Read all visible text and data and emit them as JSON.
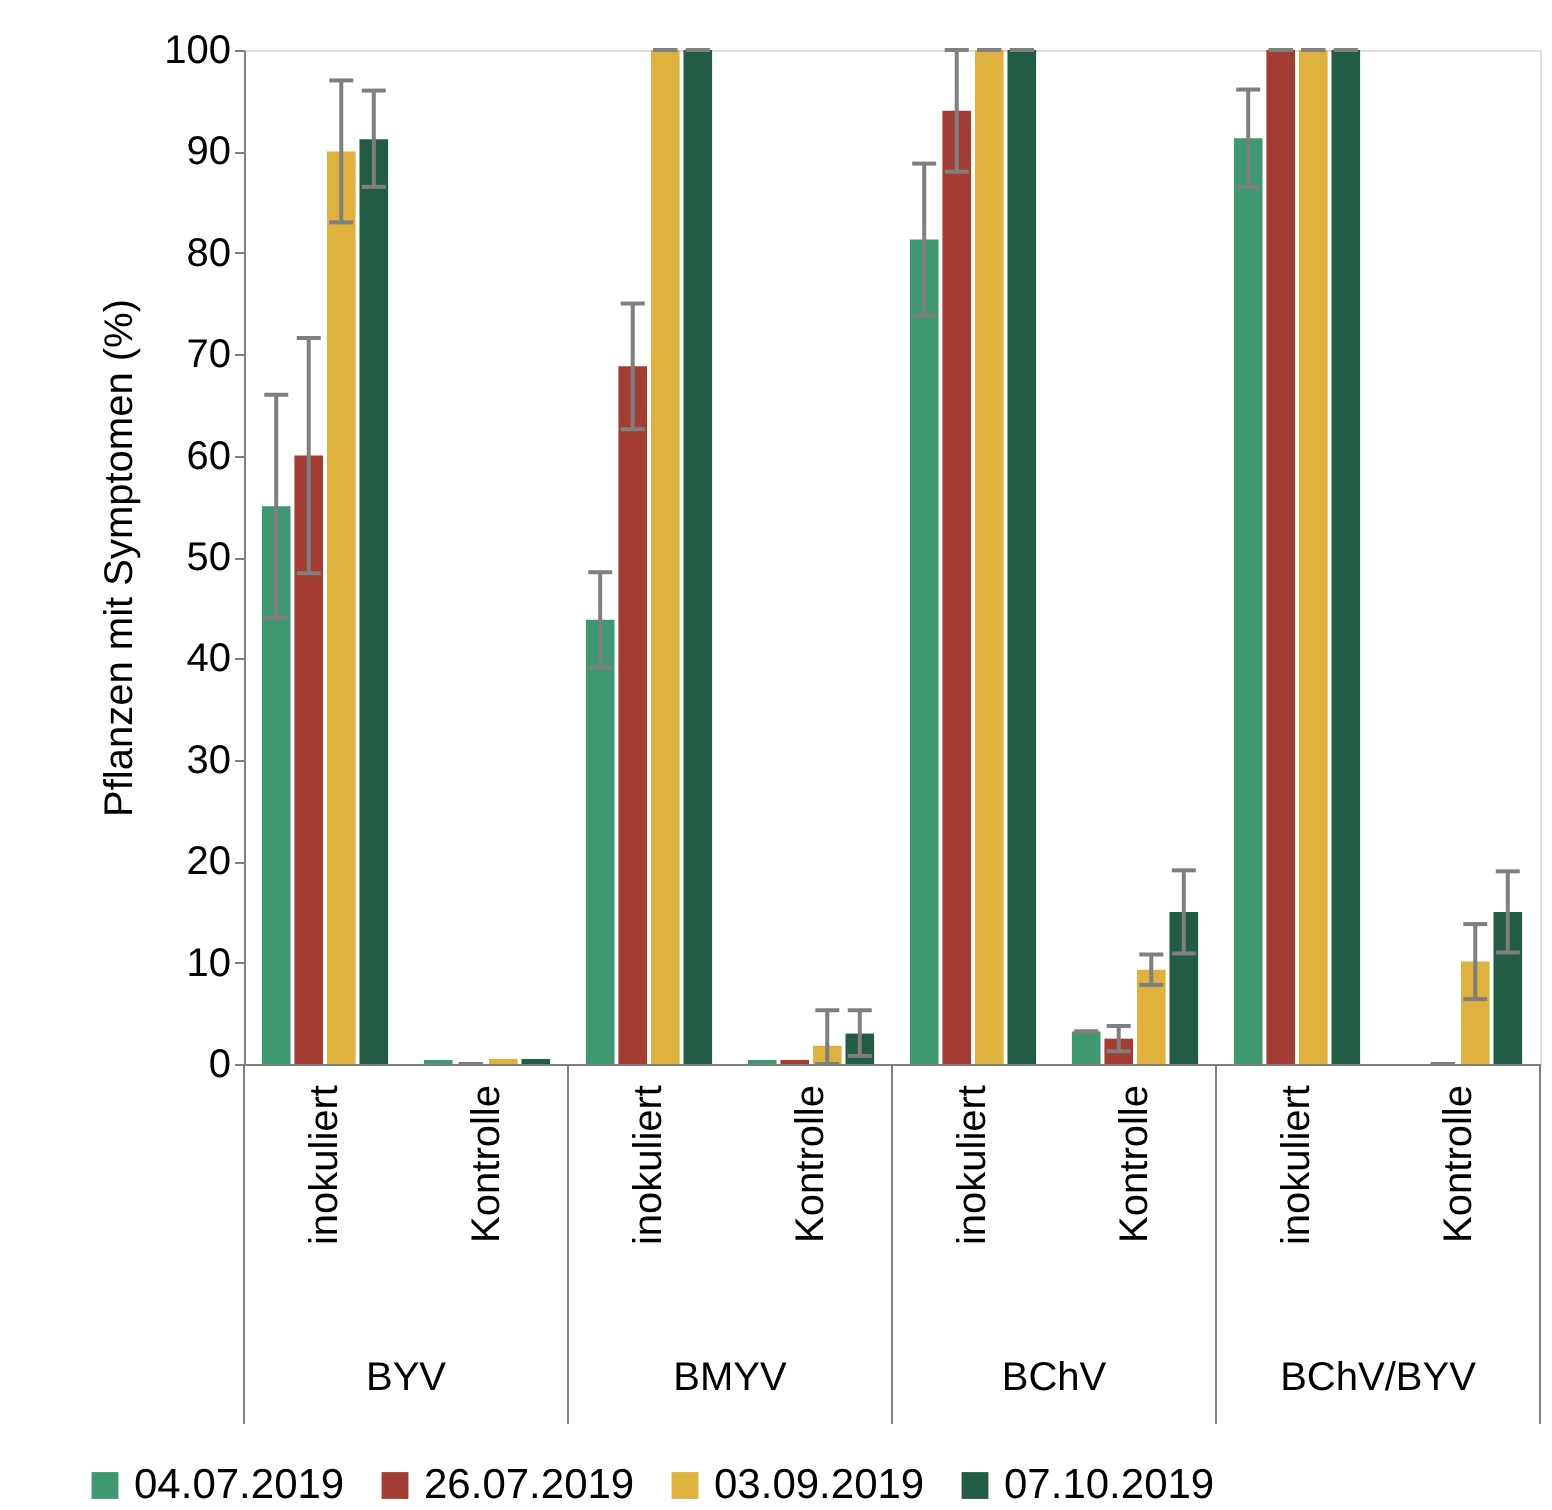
{
  "chart_data": {
    "type": "bar",
    "ylabel": "Pflanzen mit Symptomen (%)",
    "categories": [
      "inokuliert",
      "Kontrolle",
      "inokuliert",
      "Kontrolle",
      "inokuliert",
      "Kontrolle",
      "inokuliert",
      "Kontrolle"
    ],
    "annotations": [
      "BYV",
      "BMYV",
      "BChV",
      "BChV/BYV"
    ],
    "series": [
      {
        "name": "04.07.2019",
        "color": "#3e9871",
        "values": [
          55,
          0.4,
          43.8,
          0.4,
          81.3,
          3.2,
          91.3,
          0
        ],
        "errors": [
          11,
          null,
          4.7,
          null,
          7.5,
          0,
          4.8,
          null
        ]
      },
      {
        "name": "26.07.2019",
        "color": "#a33c32",
        "values": [
          60,
          0,
          68.8,
          0.4,
          94,
          2.5,
          100,
          0
        ],
        "errors": [
          11.6,
          0,
          6.2,
          null,
          [
            88,
            100
          ],
          1.25,
          0,
          0
        ]
      },
      {
        "name": "03.09.2019",
        "color": "#dfb23e",
        "values": [
          90,
          0.5,
          100,
          1.8,
          100,
          9.3,
          100,
          10.1
        ],
        "errors": [
          [
            83,
            97
          ],
          null,
          0,
          [
            0,
            5.3
          ],
          0,
          1.5,
          0,
          3.7
        ]
      },
      {
        "name": "07.10.2019",
        "color": "#235c44",
        "values": [
          91.2,
          0.5,
          100,
          3.0,
          100,
          15,
          100,
          15
        ],
        "errors": [
          [
            86.5,
            96
          ],
          null,
          0,
          [
            0.8,
            5.3
          ],
          0,
          4.1,
          0,
          4
        ]
      }
    ],
    "ylim": [
      0,
      100
    ],
    "yticks": [
      0,
      10,
      20,
      30,
      40,
      50,
      60,
      70,
      80,
      90,
      100
    ],
    "grid": false,
    "legend": "bottom"
  }
}
